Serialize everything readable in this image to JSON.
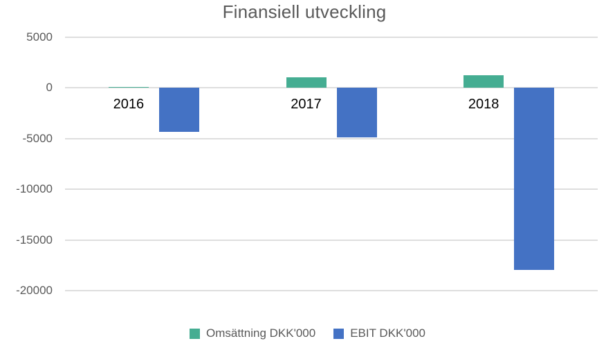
{
  "chart_data": {
    "type": "bar",
    "title": "Finansiell utveckling",
    "categories": [
      "2016",
      "2017",
      "2018"
    ],
    "series": [
      {
        "name": "Omsättning DKK'000",
        "color": "#45AD92",
        "values": [
          100,
          1050,
          1250
        ]
      },
      {
        "name": "EBIT DKK'000",
        "color": "#4472C4",
        "values": [
          -4350,
          -4870,
          -17940
        ]
      }
    ],
    "ylim": [
      -20000,
      5000
    ],
    "yticks": [
      5000,
      0,
      -5000,
      -10000,
      -15000,
      -20000
    ],
    "xlabel": "",
    "ylabel": "",
    "grid": "horizontal",
    "legend_position": "bottom",
    "colors": {
      "title_text": "#595959",
      "axis_tick_text": "#595959",
      "category_label_text": "#000000",
      "gridline": "#DEDEDE",
      "background": "#FFFFFF"
    }
  }
}
